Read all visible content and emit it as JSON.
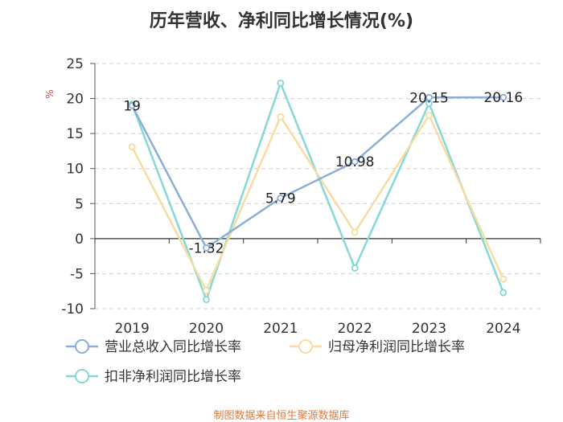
{
  "chart_data": {
    "type": "line",
    "title": "历年营收、净利同比增长情况(%)",
    "ylabel": "%",
    "categories": [
      "2019",
      "2020",
      "2021",
      "2022",
      "2023",
      "2024"
    ],
    "ylim": [
      -10,
      25
    ],
    "yticks": [
      25,
      20,
      15,
      10,
      5,
      0,
      -5,
      -10
    ],
    "grid": true,
    "legend_position": "bottom",
    "series": [
      {
        "name": "营业总收入同比增长率",
        "values": [
          19,
          -1.32,
          5.79,
          10.98,
          20.15,
          20.16
        ],
        "labels": [
          "19",
          "-1.32",
          "5.79",
          "10.98",
          "20.15",
          "20.16"
        ],
        "color": "#8eacd8"
      },
      {
        "name": "归母净利润同比增长率",
        "values": [
          13.1,
          -7.4,
          17.4,
          0.9,
          17.6,
          -5.8
        ],
        "color": "#f8dca0"
      },
      {
        "name": "扣非净利润同比增长率",
        "values": [
          19.2,
          -8.7,
          22.2,
          -4.2,
          19.3,
          -7.7
        ],
        "color": "#86d8d8"
      }
    ]
  },
  "source": "制图数据来自恒生聚源数据库"
}
